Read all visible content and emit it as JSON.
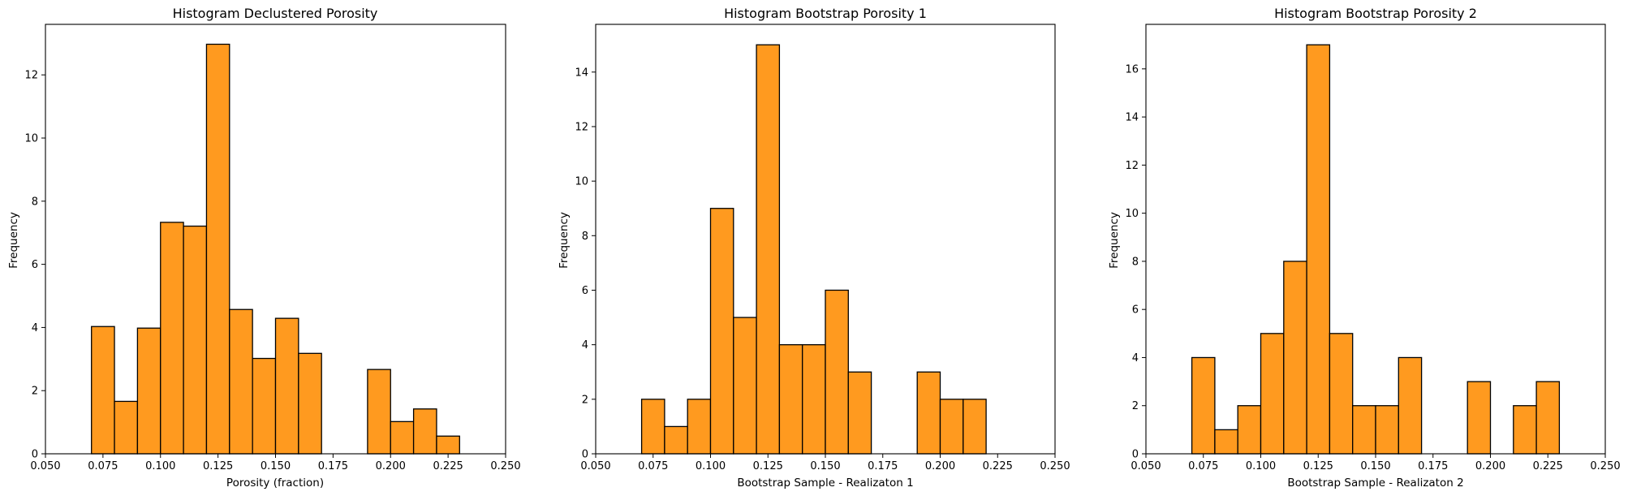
{
  "bar_color": "#ff9a1f",
  "edge_color": "#000000",
  "chart_data": [
    {
      "type": "bar",
      "title": "Histogram Declustered Porosity",
      "xlabel": "Porosity (fraction)",
      "ylabel": "Frequency",
      "xlim": [
        0.05,
        0.25
      ],
      "ylim": [
        0,
        13.6
      ],
      "xticks": [
        0.05,
        0.075,
        0.1,
        0.125,
        0.15,
        0.175,
        0.2,
        0.225,
        0.25
      ],
      "xtick_labels": [
        "0.050",
        "0.075",
        "0.100",
        "0.125",
        "0.150",
        "0.175",
        "0.200",
        "0.225",
        "0.250"
      ],
      "yticks": [
        0,
        2,
        4,
        6,
        8,
        10,
        12
      ],
      "ytick_labels": [
        "0",
        "2",
        "4",
        "6",
        "8",
        "10",
        "12"
      ],
      "bins": [
        {
          "x0": 0.07,
          "x1": 0.08,
          "value": 4.03
        },
        {
          "x0": 0.08,
          "x1": 0.09,
          "value": 1.66
        },
        {
          "x0": 0.09,
          "x1": 0.1,
          "value": 3.98
        },
        {
          "x0": 0.1,
          "x1": 0.11,
          "value": 7.33
        },
        {
          "x0": 0.11,
          "x1": 0.12,
          "value": 7.21
        },
        {
          "x0": 0.12,
          "x1": 0.13,
          "value": 12.97
        },
        {
          "x0": 0.13,
          "x1": 0.14,
          "value": 4.57
        },
        {
          "x0": 0.14,
          "x1": 0.15,
          "value": 3.02
        },
        {
          "x0": 0.15,
          "x1": 0.16,
          "value": 4.29
        },
        {
          "x0": 0.16,
          "x1": 0.17,
          "value": 3.18
        },
        {
          "x0": 0.19,
          "x1": 0.2,
          "value": 2.67
        },
        {
          "x0": 0.2,
          "x1": 0.21,
          "value": 1.02
        },
        {
          "x0": 0.21,
          "x1": 0.22,
          "value": 1.42
        },
        {
          "x0": 0.22,
          "x1": 0.23,
          "value": 0.56
        }
      ]
    },
    {
      "type": "bar",
      "title": "Histogram Bootstrap Porosity 1",
      "xlabel": "Bootstrap Sample - Realizaton 1",
      "ylabel": "Frequency",
      "xlim": [
        0.05,
        0.25
      ],
      "ylim": [
        0,
        15.75
      ],
      "xticks": [
        0.05,
        0.075,
        0.1,
        0.125,
        0.15,
        0.175,
        0.2,
        0.225,
        0.25
      ],
      "xtick_labels": [
        "0.050",
        "0.075",
        "0.100",
        "0.125",
        "0.150",
        "0.175",
        "0.200",
        "0.225",
        "0.250"
      ],
      "yticks": [
        0,
        2,
        4,
        6,
        8,
        10,
        12,
        14
      ],
      "ytick_labels": [
        "0",
        "2",
        "4",
        "6",
        "8",
        "10",
        "12",
        "14"
      ],
      "bins": [
        {
          "x0": 0.07,
          "x1": 0.08,
          "value": 2
        },
        {
          "x0": 0.08,
          "x1": 0.09,
          "value": 1
        },
        {
          "x0": 0.09,
          "x1": 0.1,
          "value": 2
        },
        {
          "x0": 0.1,
          "x1": 0.11,
          "value": 9
        },
        {
          "x0": 0.11,
          "x1": 0.12,
          "value": 5
        },
        {
          "x0": 0.12,
          "x1": 0.13,
          "value": 15
        },
        {
          "x0": 0.13,
          "x1": 0.14,
          "value": 4
        },
        {
          "x0": 0.14,
          "x1": 0.15,
          "value": 4
        },
        {
          "x0": 0.15,
          "x1": 0.16,
          "value": 6
        },
        {
          "x0": 0.16,
          "x1": 0.17,
          "value": 3
        },
        {
          "x0": 0.19,
          "x1": 0.2,
          "value": 3
        },
        {
          "x0": 0.2,
          "x1": 0.21,
          "value": 2
        },
        {
          "x0": 0.21,
          "x1": 0.22,
          "value": 2
        }
      ]
    },
    {
      "type": "bar",
      "title": "Histogram Bootstrap Porosity 2",
      "xlabel": "Bootstrap Sample - Realizaton 2",
      "ylabel": "Frequency",
      "xlim": [
        0.05,
        0.25
      ],
      "ylim": [
        0,
        17.85
      ],
      "xticks": [
        0.05,
        0.075,
        0.1,
        0.125,
        0.15,
        0.175,
        0.2,
        0.225,
        0.25
      ],
      "xtick_labels": [
        "0.050",
        "0.075",
        "0.100",
        "0.125",
        "0.150",
        "0.175",
        "0.200",
        "0.225",
        "0.250"
      ],
      "yticks": [
        0,
        2,
        4,
        6,
        8,
        10,
        12,
        14,
        16
      ],
      "ytick_labels": [
        "0",
        "2",
        "4",
        "6",
        "8",
        "10",
        "12",
        "14",
        "16"
      ],
      "bins": [
        {
          "x0": 0.07,
          "x1": 0.08,
          "value": 4
        },
        {
          "x0": 0.08,
          "x1": 0.09,
          "value": 1
        },
        {
          "x0": 0.09,
          "x1": 0.1,
          "value": 2
        },
        {
          "x0": 0.1,
          "x1": 0.11,
          "value": 5
        },
        {
          "x0": 0.11,
          "x1": 0.12,
          "value": 8
        },
        {
          "x0": 0.12,
          "x1": 0.13,
          "value": 17
        },
        {
          "x0": 0.13,
          "x1": 0.14,
          "value": 5
        },
        {
          "x0": 0.14,
          "x1": 0.15,
          "value": 2
        },
        {
          "x0": 0.15,
          "x1": 0.16,
          "value": 2
        },
        {
          "x0": 0.16,
          "x1": 0.17,
          "value": 4
        },
        {
          "x0": 0.19,
          "x1": 0.2,
          "value": 3
        },
        {
          "x0": 0.21,
          "x1": 0.22,
          "value": 2
        },
        {
          "x0": 0.22,
          "x1": 0.23,
          "value": 3
        }
      ]
    }
  ]
}
